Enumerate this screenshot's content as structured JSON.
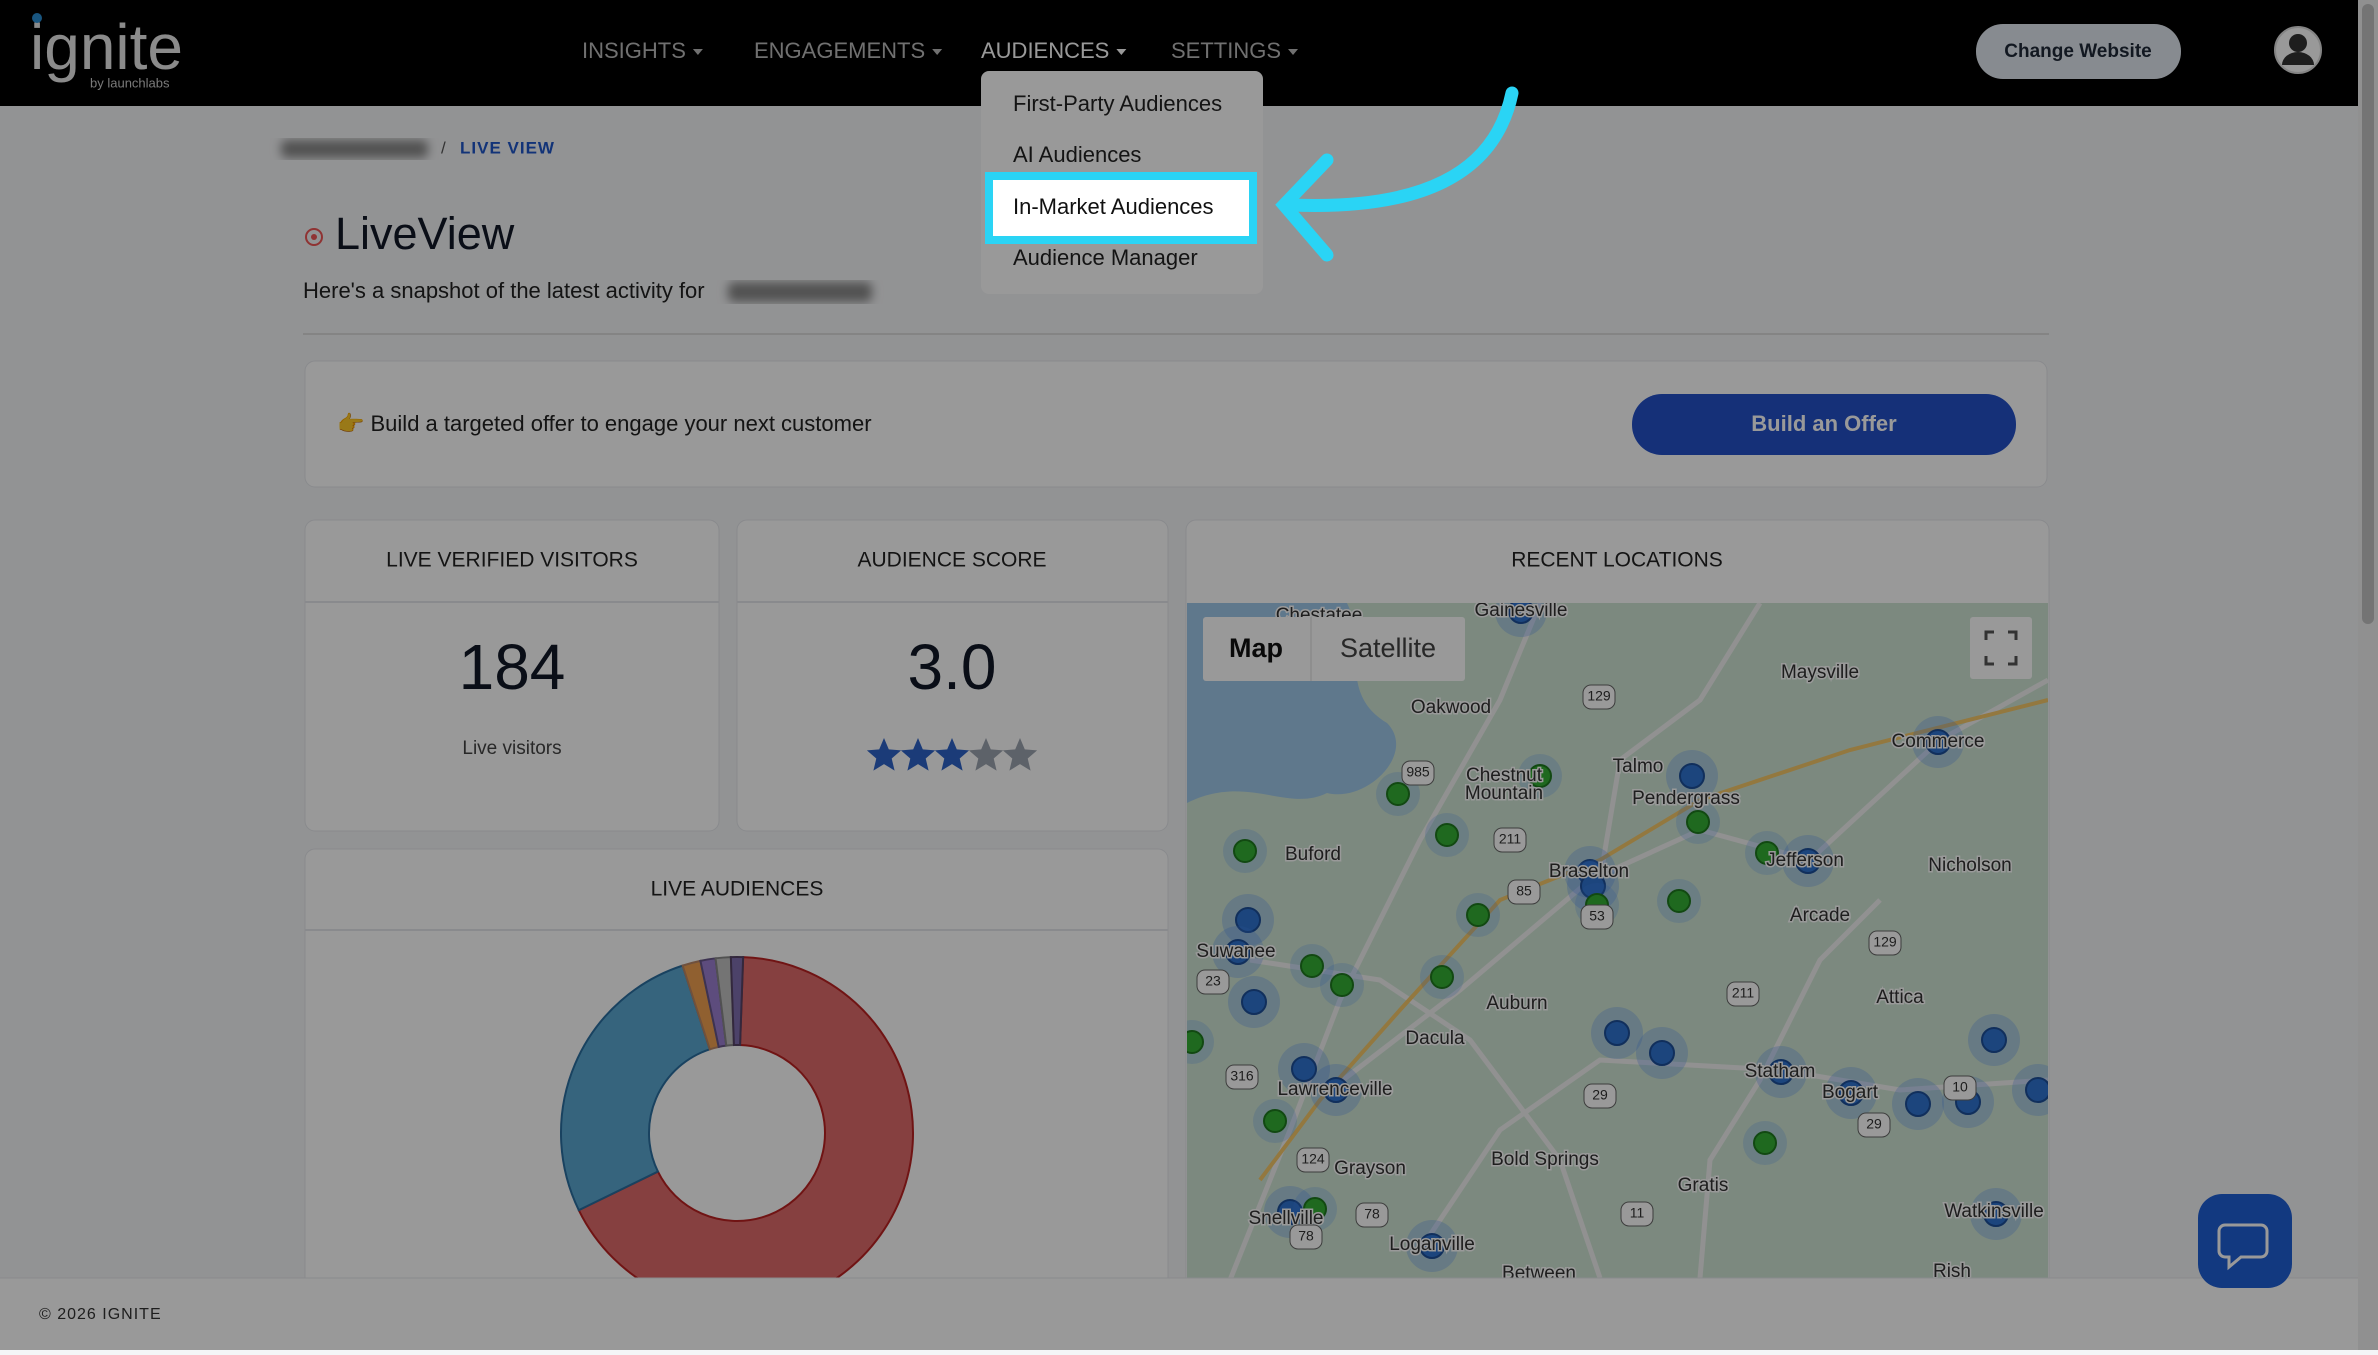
{
  "header": {
    "logo": "ignite",
    "logo_sub": "by launchlabs",
    "nav": [
      "INSIGHTS",
      "ENGAGEMENTS",
      "AUDIENCES",
      "SETTINGS"
    ],
    "change_website": "Change Website"
  },
  "dropdown": {
    "items": [
      "First-Party Audiences",
      "AI Audiences",
      "In-Market Audiences",
      "Audience Manager"
    ]
  },
  "breadcrumb": "LIVE VIEW",
  "page": {
    "title": "LiveView",
    "subtitle": "Here's a snapshot of the latest activity for"
  },
  "offer": {
    "text": "👉 Build a targeted offer to engage your next customer",
    "button": "Build an Offer"
  },
  "cards": {
    "visitors": {
      "title": "LIVE VERIFIED VISITORS",
      "value": "184",
      "caption": "Live visitors"
    },
    "score": {
      "title": "AUDIENCE SCORE",
      "value": "3.0"
    },
    "locations": {
      "title": "RECENT LOCATIONS"
    },
    "audiences": {
      "title": "LIVE AUDIENCES"
    }
  },
  "map": {
    "buttons": [
      "Map",
      "Satellite"
    ],
    "labels": [
      "Chestatee",
      "Gainesville",
      "Maysville",
      "Oakwood",
      "Talmo",
      "Chestnut",
      "Mountain",
      "Pendergrass",
      "Commerce",
      "Buford",
      "Braselton",
      "Jefferson",
      "Nicholson",
      "Arcade",
      "Suwanee",
      "Auburn",
      "Attica",
      "Dacula",
      "Lawrenceville",
      "Statham",
      "Bogart",
      "Grayson",
      "Bold Springs",
      "Gratis",
      "Snellville",
      "Loganville",
      "Watkinsville",
      "Between",
      "Rish"
    ],
    "shields": [
      "129",
      "985",
      "211",
      "85",
      "53",
      "23",
      "129",
      "211",
      "316",
      "29",
      "124",
      "78",
      "11",
      "78",
      "29",
      "10"
    ]
  },
  "footer": "© 2026 IGNITE"
}
